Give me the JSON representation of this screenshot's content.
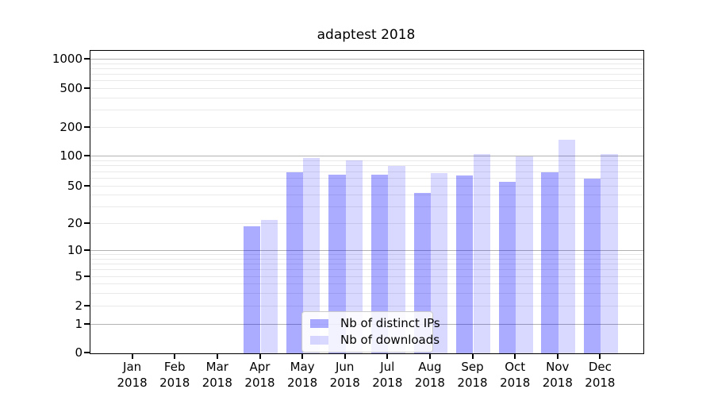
{
  "chart_data": {
    "type": "bar",
    "title": "adaptest 2018",
    "categories": [
      "Jan 2018",
      "Feb 2018",
      "Mar 2018",
      "Apr 2018",
      "May 2018",
      "Jun 2018",
      "Jul 2018",
      "Aug 2018",
      "Sep 2018",
      "Oct 2018",
      "Nov 2018",
      "Dec 2018"
    ],
    "series": [
      {
        "name": "Nb of distinct IPs",
        "color": "rgba(0,0,255,0.33)",
        "values": [
          0,
          0,
          0,
          19,
          70,
          66,
          66,
          43,
          65,
          56,
          70,
          60
        ]
      },
      {
        "name": "Nb of downloads",
        "color": "rgba(0,0,255,0.15)",
        "values": [
          0,
          0,
          0,
          22,
          96,
          92,
          80,
          68,
          105,
          101,
          150,
          106
        ]
      }
    ],
    "xlabel": "",
    "ylabel": "",
    "y_axis": {
      "scale": "symlog",
      "ticks": [
        0,
        1,
        2,
        5,
        10,
        20,
        50,
        100,
        200,
        500,
        1000
      ],
      "major_grid_values": [
        1,
        10,
        100,
        1000
      ],
      "minor_grid_multiples": [
        2,
        3,
        4,
        5,
        6,
        7,
        8,
        9
      ]
    },
    "grid": true,
    "legend_position": "lower center"
  },
  "colors": {
    "bar_distinct_ips": "rgba(0,0,255,0.33)",
    "bar_downloads": "rgba(0,0,255,0.15)",
    "grid_major": "#b2b2b2",
    "grid_minor": "#e9e9e9",
    "axis_spine": "#000000",
    "legend_border": "#cbcbcb",
    "legend_background": "rgba(255,255,255,0.85)"
  }
}
